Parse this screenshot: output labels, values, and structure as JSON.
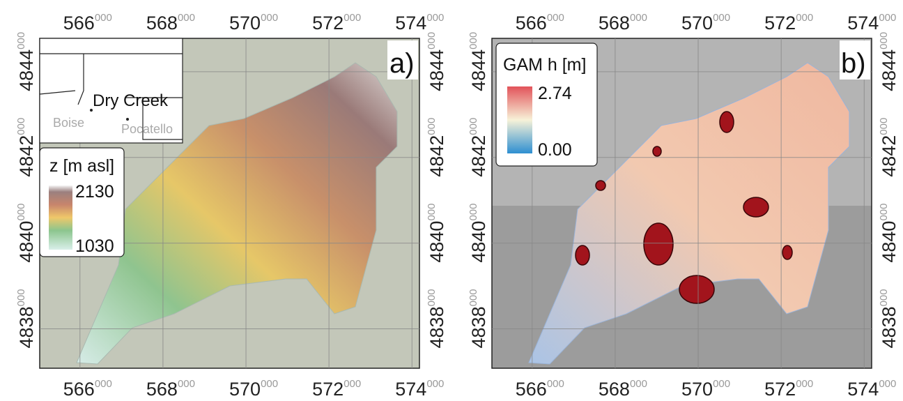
{
  "axes": {
    "xlim": [
      565030,
      574180
    ],
    "ylim": [
      4837080,
      4844780
    ],
    "xticks": [
      {
        "value": 566000,
        "main": "566",
        "sup": "000"
      },
      {
        "value": 568000,
        "main": "568",
        "sup": "000"
      },
      {
        "value": 570000,
        "main": "570",
        "sup": "000"
      },
      {
        "value": 572000,
        "main": "572",
        "sup": "000"
      },
      {
        "value": 574000,
        "main": "574",
        "sup": "000"
      }
    ],
    "yticks": [
      {
        "value": 4838000,
        "main": "4838",
        "sup": "000"
      },
      {
        "value": 4840000,
        "main": "4840",
        "sup": "000"
      },
      {
        "value": 4842000,
        "main": "4842",
        "sup": "000"
      },
      {
        "value": 4844000,
        "main": "4844",
        "sup": "000"
      }
    ]
  },
  "panels": [
    {
      "label": "a)",
      "legend": {
        "title": "z [m asl]",
        "max": "2130",
        "min": "1030"
      },
      "inset": {
        "labels": [
          "Dry Creek",
          "Boise",
          "Pocatello"
        ]
      }
    },
    {
      "label": "b)",
      "legend": {
        "title": "GAM h [m]",
        "max": "2.74",
        "min": "0.00"
      }
    }
  ]
}
